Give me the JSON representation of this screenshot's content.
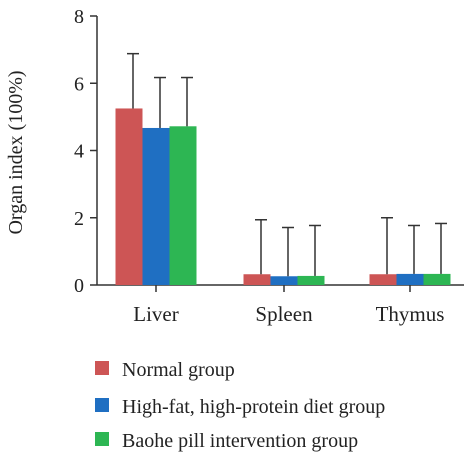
{
  "chart_data": {
    "type": "bar",
    "title": "",
    "xlabel": "",
    "ylabel": "Organ index (100%)",
    "categories": [
      "Liver",
      "Spleen",
      "Thymus"
    ],
    "ylim": [
      0,
      8
    ],
    "yticks": [
      0,
      2,
      4,
      6,
      8
    ],
    "grid": false,
    "legend_position": "bottom",
    "error_bars": true,
    "series": [
      {
        "name": "Normal group",
        "color": "#cd5555",
        "values": [
          5.25,
          0.32,
          0.32
        ],
        "errors": [
          1.63,
          1.62,
          1.68
        ]
      },
      {
        "name": "High-fat, high-protein diet group",
        "color": "#1f6fc2",
        "values": [
          4.67,
          0.26,
          0.33
        ],
        "errors": [
          1.5,
          1.45,
          1.44
        ]
      },
      {
        "name": "Baohe pill intervention group",
        "color": "#2db653",
        "values": [
          4.72,
          0.27,
          0.33
        ],
        "errors": [
          1.45,
          1.5,
          1.5
        ]
      }
    ]
  }
}
